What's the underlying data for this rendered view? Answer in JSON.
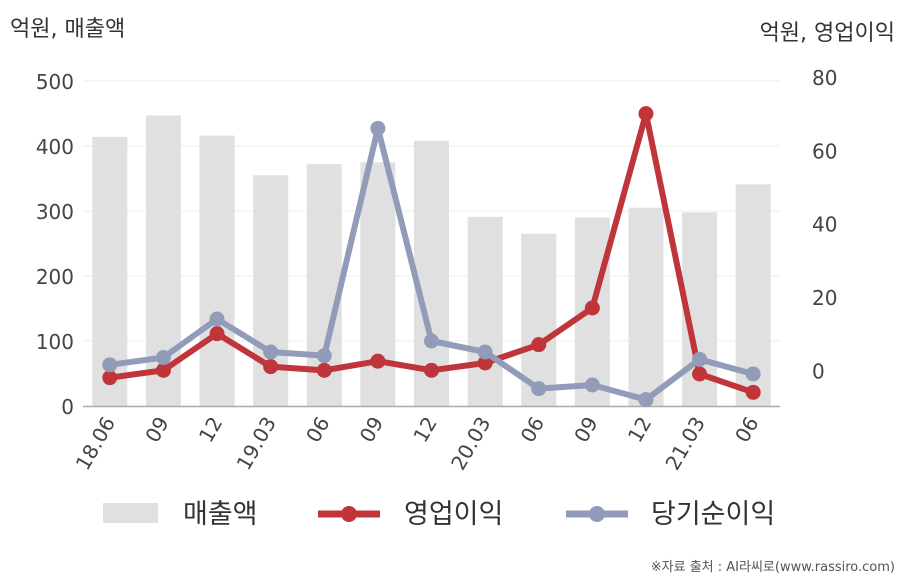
{
  "chart_data": {
    "type": "bar",
    "left_unit": "억원, 매출액",
    "right_unit": "억원, 영업이익",
    "categories": [
      "18.06",
      "09",
      "12",
      "19.03",
      "06",
      "09",
      "12",
      "20.03",
      "06",
      "09",
      "12",
      "21.03",
      "06"
    ],
    "left_axis": {
      "ticks": [
        0,
        100,
        200,
        300,
        400,
        500
      ],
      "ylim": [
        0,
        500
      ]
    },
    "right_axis": {
      "ticks": [
        0,
        20,
        40,
        60,
        80
      ],
      "ylim": [
        -10,
        80
      ]
    },
    "series": [
      {
        "name": "매출액",
        "type": "bar",
        "axis": "left",
        "color": "#e0e0e0",
        "values": [
          414,
          447,
          416,
          355,
          372,
          375,
          408,
          291,
          265,
          290,
          305,
          298,
          341
        ]
      },
      {
        "name": "영업이익",
        "type": "line",
        "axis": "right",
        "color": "#c0353a",
        "values": [
          -2,
          0,
          10,
          1,
          0,
          2.5,
          0,
          2,
          7,
          17,
          70,
          -1,
          -6
        ]
      },
      {
        "name": "당기순이익",
        "type": "line",
        "axis": "right",
        "color": "#909cb8",
        "values": [
          1.5,
          3.5,
          14,
          5,
          4,
          66,
          8,
          5,
          -5,
          -4,
          -8,
          3,
          -1
        ]
      }
    ],
    "grid": true,
    "legend": "bottom"
  },
  "source_text": "※자료 출처 : AI라씨로(www.rassiro.com)"
}
